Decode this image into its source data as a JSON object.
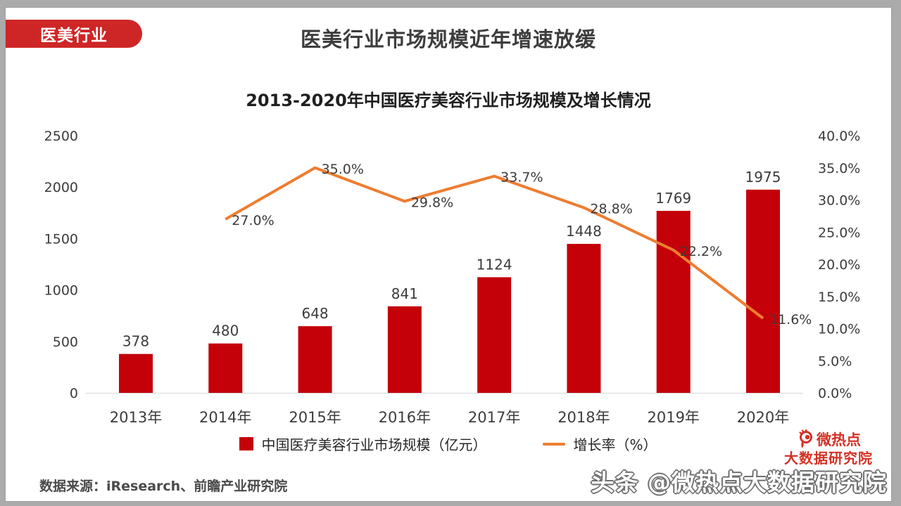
{
  "badge": {
    "label": "医美行业"
  },
  "header": {
    "title": "医美行业市场规模近年增速放缓"
  },
  "chart_data": {
    "type": "bar+line combo",
    "title": "2013-2020年中国医疗美容行业市场规模及增长情况",
    "categories": [
      "2013年",
      "2014年",
      "2015年",
      "2016年",
      "2017年",
      "2018年",
      "2019年",
      "2020年"
    ],
    "series": [
      {
        "name": "中国医疗美容行业市场规模（亿元）",
        "type": "bar",
        "axis": "left",
        "color": "#C40009",
        "values": [
          378,
          480,
          648,
          841,
          1124,
          1448,
          1769,
          1975
        ]
      },
      {
        "name": "增长率（%）",
        "type": "line",
        "axis": "right",
        "color": "#ED7D31",
        "values": [
          null,
          27.0,
          35.0,
          29.8,
          33.7,
          28.8,
          22.2,
          11.6
        ],
        "point_labels": [
          null,
          "27.0%",
          "35.0%",
          "29.8%",
          "33.7%",
          "28.8%",
          "22.2%",
          "11.6%"
        ]
      }
    ],
    "left_axis": {
      "min": 0,
      "max": 2500,
      "ticks": [
        "2500",
        "2000",
        "1500",
        "1000",
        "500",
        "0"
      ]
    },
    "right_axis": {
      "min": 0,
      "max": 40,
      "ticks": [
        "40.0%",
        "35.0%",
        "30.0%",
        "25.0%",
        "20.0%",
        "15.0%",
        "10.0%",
        "5.0%",
        "0.0%"
      ]
    },
    "grid": false,
    "legend_position": "bottom"
  },
  "footer": {
    "source": "数据来源：iResearch、前瞻产业研究院"
  },
  "branding": {
    "logo_line1": "微热点",
    "logo_line2": "大数据研究院",
    "watermark": "头条 @微热点大数据研究院"
  },
  "colors": {
    "frame": "#ABABAB",
    "badge_red": "#CE2626",
    "bar_red": "#C40009",
    "line_orange": "#ED7D31",
    "axis_line": "#D9D9D9",
    "brand_red": "#D43226"
  }
}
